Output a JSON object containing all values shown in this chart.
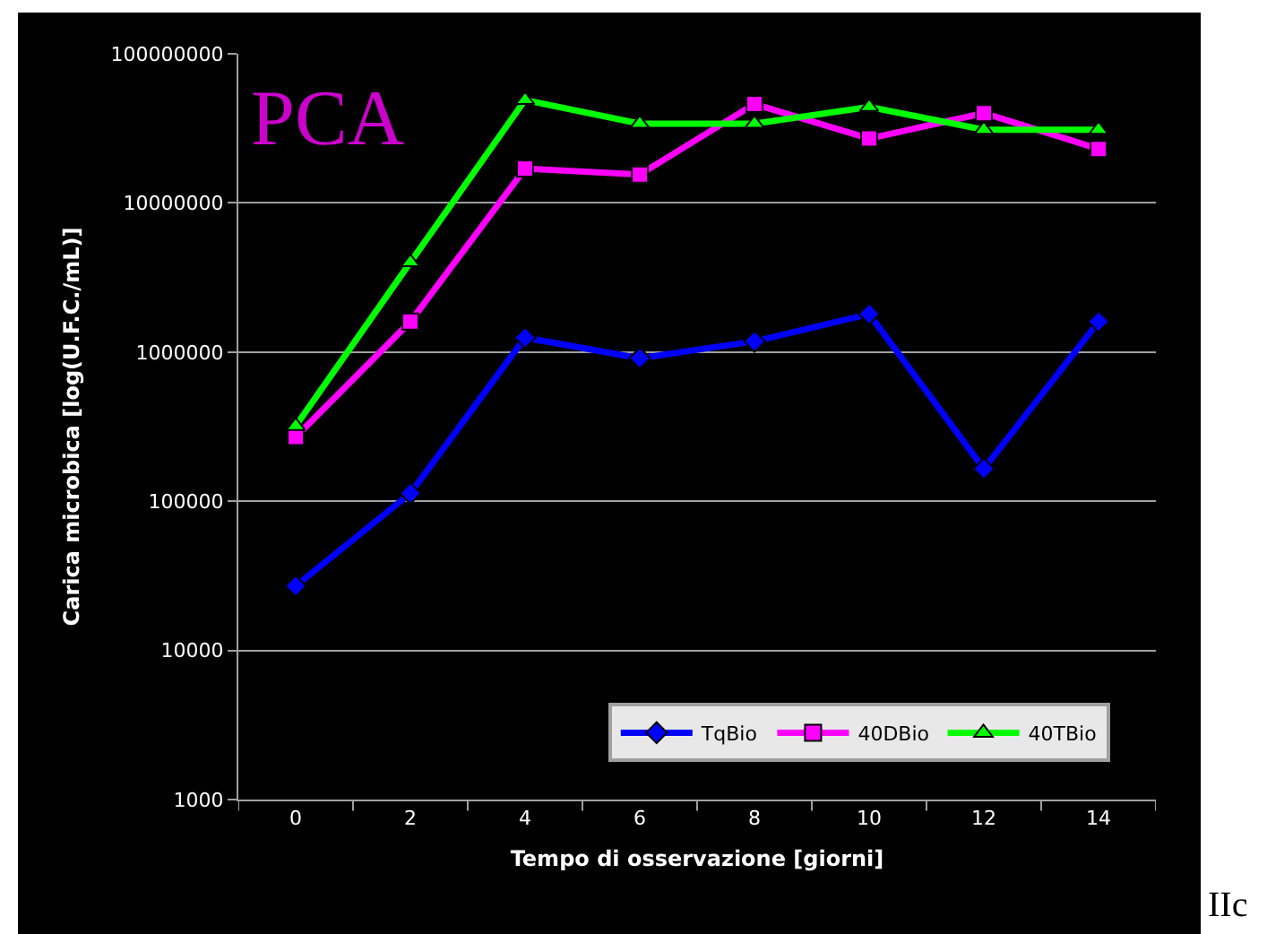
{
  "chart_data": {
    "type": "line",
    "title": "PCA",
    "xlabel": "Tempo di osservazione [giorni]",
    "ylabel": "Carica microbica [log(U.F.C./mL)]",
    "categories": [
      "0",
      "2",
      "4",
      "6",
      "8",
      "10",
      "12",
      "14"
    ],
    "series": [
      {
        "name": "TqBio",
        "color": "#0000ff",
        "marker": "diamond",
        "values": [
          27000,
          113000,
          1250000,
          910000,
          1180000,
          1800000,
          165000,
          1600000
        ]
      },
      {
        "name": "40DBio",
        "color": "#ff00ff",
        "marker": "square",
        "values": [
          270000,
          1600000,
          17000000,
          15500000,
          46000000,
          27000000,
          40000000,
          23000000
        ]
      },
      {
        "name": "40TBio",
        "color": "#00ff00",
        "marker": "triangle",
        "values": [
          320000,
          4000000,
          49000000,
          34000000,
          34000000,
          44000000,
          31000000,
          31000000
        ]
      }
    ],
    "log": true,
    "ylim": [
      1000,
      100000000
    ],
    "yticks": [
      1000,
      10000,
      100000,
      1000000,
      10000000,
      100000000
    ],
    "grid": "y",
    "legend": "bottom right",
    "line_style": "solid",
    "annotations": [
      "IIc"
    ]
  }
}
